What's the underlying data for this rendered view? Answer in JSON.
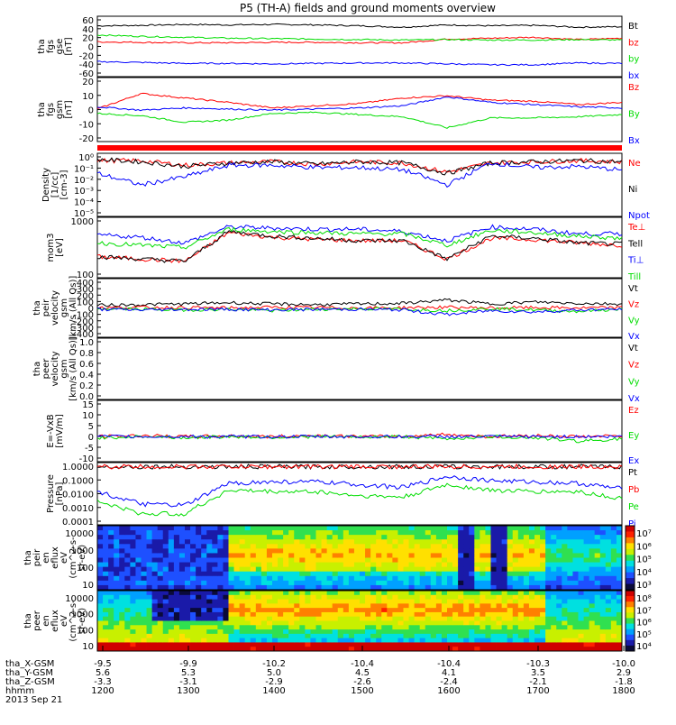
{
  "title": "P5 (TH-A) fields and ground moments overview",
  "colors": {
    "black": "#000000",
    "red": "#ff0000",
    "green": "#00dd00",
    "blue": "#0000ff",
    "frame": "#000000"
  },
  "chart_data": [
    {
      "type": "line",
      "panel": "fgs_gse",
      "ylabel": [
        "tha",
        "fgs",
        "gse",
        "[nT]"
      ],
      "yticks": [
        60,
        40,
        20,
        0,
        -20,
        -40,
        -60
      ],
      "ylim": [
        -60,
        60
      ],
      "series": [
        {
          "name": "Bt",
          "color": "black",
          "values": [
            45,
            46,
            48,
            47,
            48,
            47,
            45,
            42,
            47,
            45,
            46,
            42,
            43
          ]
        },
        {
          "name": "bz",
          "color": "red",
          "values": [
            10,
            9,
            8,
            8,
            9,
            9,
            8,
            8,
            16,
            18,
            20,
            15,
            18
          ]
        },
        {
          "name": "by",
          "color": "green",
          "values": [
            25,
            22,
            20,
            18,
            17,
            16,
            15,
            14,
            15,
            14,
            14,
            15,
            14
          ]
        },
        {
          "name": "bx",
          "color": "blue",
          "values": [
            -33,
            -35,
            -37,
            -37,
            -38,
            -37,
            -36,
            -36,
            -38,
            -40,
            -40,
            -36,
            -37
          ]
        }
      ]
    },
    {
      "type": "line",
      "panel": "fgs_gsm",
      "ylabel": [
        "tha",
        "fgs",
        "gsm",
        "[nT]"
      ],
      "yticks": [
        20,
        10,
        0,
        -10,
        -20
      ],
      "ylim": [
        -25,
        28
      ],
      "series": [
        {
          "name": "Bz",
          "color": "red",
          "values": [
            2,
            16,
            12,
            8,
            3,
            5,
            7,
            12,
            14,
            10,
            9,
            6,
            8
          ]
        },
        {
          "name": "By",
          "color": "green",
          "values": [
            -2,
            -4,
            -10,
            -8,
            -2,
            -1,
            -3,
            -5,
            -15,
            -6,
            -6,
            -5,
            -3
          ]
        },
        {
          "name": "Bx",
          "color": "blue",
          "values": [
            4,
            1,
            3,
            2,
            1,
            2,
            3,
            5,
            13,
            8,
            6,
            4,
            3
          ]
        }
      ]
    },
    {
      "type": "line",
      "panel": "density",
      "log": true,
      "ylabel": [
        "Density",
        "[1/cc]",
        "[cm-3]"
      ],
      "yticks": [
        "10^0",
        "10^-1",
        "10^-2",
        "10^-3",
        "10^-4",
        "10^-5"
      ],
      "ylim": [
        -5,
        0
      ],
      "series": [
        {
          "name": "Ne",
          "color": "red",
          "values": [
            -0.4,
            -0.4,
            -0.8,
            -0.6,
            -0.5,
            -0.7,
            -0.5,
            -0.6,
            -1.4,
            -0.6,
            -0.5,
            -0.4,
            -0.5
          ]
        },
        {
          "name": "Ni",
          "color": "black",
          "values": [
            -0.3,
            -0.5,
            -0.9,
            -0.6,
            -0.5,
            -0.7,
            -0.5,
            -0.6,
            -1.5,
            -0.6,
            -0.5,
            -0.4,
            -0.5
          ]
        },
        {
          "name": "Npot",
          "color": "blue",
          "values": [
            -1.5,
            -2.5,
            -1.8,
            -0.8,
            -0.8,
            -1.0,
            -1.0,
            -1.2,
            -2.5,
            -0.6,
            -1.0,
            -0.9,
            -1.2
          ]
        }
      ]
    },
    {
      "type": "line",
      "panel": "temperature",
      "log": true,
      "ylabel": [
        "mom3",
        "[eV]"
      ],
      "yticks": [
        "1000",
        "100"
      ],
      "ylim": [
        1.5,
        3.9
      ],
      "series": [
        {
          "name": "Te⊥",
          "color": "red",
          "values": [
            2.3,
            2.2,
            2.1,
            3.35,
            3.15,
            3.05,
            3.0,
            3.0,
            2.2,
            3.1,
            3.05,
            2.9,
            2.8
          ]
        },
        {
          "name": "Tell",
          "color": "black",
          "values": [
            2.3,
            2.2,
            2.1,
            3.4,
            3.2,
            3.1,
            3.0,
            3.0,
            2.2,
            3.2,
            3.1,
            2.9,
            2.85
          ]
        },
        {
          "name": "Ti⊥",
          "color": "blue",
          "values": [
            3.25,
            3.15,
            2.9,
            3.6,
            3.55,
            3.5,
            3.5,
            3.4,
            3.0,
            3.6,
            3.5,
            3.3,
            3.3
          ]
        },
        {
          "name": "Till",
          "color": "green",
          "values": [
            2.9,
            2.8,
            2.7,
            3.5,
            3.4,
            3.35,
            3.3,
            3.3,
            2.8,
            3.45,
            3.35,
            3.2,
            3.1
          ]
        }
      ]
    },
    {
      "type": "line",
      "panel": "peir_velocity",
      "ylabel": [
        "tha",
        "peir",
        "velocity",
        "gsm",
        "[km/s (All Qs)]"
      ],
      "yticks": [
        400,
        300,
        200,
        100,
        0,
        -100,
        -200,
        -300,
        -400
      ],
      "ylim": [
        -400,
        400
      ],
      "series": [
        {
          "name": "Vt",
          "color": "black",
          "values": [
            40,
            50,
            60,
            80,
            60,
            50,
            60,
            70,
            120,
            60,
            90,
            70,
            60
          ]
        },
        {
          "name": "Vz",
          "color": "red",
          "values": [
            0,
            10,
            5,
            0,
            10,
            5,
            0,
            5,
            10,
            0,
            5,
            0,
            5
          ]
        },
        {
          "name": "Vy",
          "color": "green",
          "values": [
            -10,
            -20,
            -30,
            -20,
            -40,
            -20,
            -10,
            -20,
            -40,
            -10,
            -30,
            -50,
            -20
          ]
        },
        {
          "name": "Vx",
          "color": "blue",
          "values": [
            -20,
            -30,
            -20,
            -20,
            -30,
            -20,
            -20,
            -30,
            -100,
            -40,
            -60,
            -30,
            -20
          ]
        }
      ]
    },
    {
      "type": "line",
      "panel": "peer_velocity",
      "ylabel": [
        "tha",
        "peer",
        "velocity",
        "gsm",
        "[km/s (All Qs)]"
      ],
      "yticks": [
        "1.0",
        "0.8",
        "0.6",
        "0.4",
        "0.2",
        "0.0"
      ],
      "ylim": [
        0,
        1
      ],
      "series": [
        {
          "name": "Vt",
          "color": "black",
          "values": []
        },
        {
          "name": "Vz",
          "color": "red",
          "values": []
        },
        {
          "name": "Vy",
          "color": "green",
          "values": []
        },
        {
          "name": "Vx",
          "color": "blue",
          "values": []
        }
      ]
    },
    {
      "type": "line",
      "panel": "efield",
      "ylabel": [
        "E=-VxB",
        "[mV/m]"
      ],
      "yticks": [
        15,
        10,
        5,
        0,
        -5,
        -10
      ],
      "ylim": [
        -10,
        15
      ],
      "series": [
        {
          "name": "Ez",
          "color": "red",
          "values": [
            0,
            0.5,
            0,
            0.3,
            0,
            0.5,
            0,
            0.2,
            1,
            0,
            0.5,
            0,
            0.3
          ]
        },
        {
          "name": "Ey",
          "color": "green",
          "values": [
            -0.5,
            0,
            -0.5,
            0,
            -0.3,
            0,
            -0.2,
            0,
            -1,
            0,
            -0.5,
            -2,
            -1
          ]
        },
        {
          "name": "Ex",
          "color": "blue",
          "values": [
            0,
            0,
            0,
            0,
            0,
            0,
            0,
            0,
            0,
            0,
            0,
            0,
            0
          ]
        }
      ]
    },
    {
      "type": "line",
      "panel": "pressure",
      "log": true,
      "ylabel": [
        "Pressure",
        "[nPa]"
      ],
      "yticks": [
        "1.0000",
        "0.1000",
        "0.0100",
        "0.0010",
        "0.0001"
      ],
      "ylim": [
        -4,
        0.1
      ],
      "series": [
        {
          "name": "Pt",
          "color": "black",
          "values": [
            0,
            0,
            0,
            0,
            0,
            0,
            0,
            0,
            0,
            0,
            0,
            0,
            0
          ]
        },
        {
          "name": "Pb",
          "color": "red",
          "values": [
            0,
            0,
            0,
            0,
            0,
            0,
            0,
            0,
            0,
            0,
            0,
            0,
            0
          ]
        },
        {
          "name": "Pe",
          "color": "green",
          "values": [
            -2.5,
            -3.4,
            -3.4,
            -1.7,
            -1.8,
            -1.8,
            -2.1,
            -2.2,
            -1.3,
            -1.7,
            -1.8,
            -1.8,
            -2.3
          ]
        },
        {
          "name": "Pi",
          "color": "blue",
          "values": [
            -1.8,
            -2.7,
            -2.8,
            -1.2,
            -1.1,
            -1.1,
            -1.3,
            -1.5,
            -0.7,
            -1.0,
            -1.1,
            -1.2,
            -1.6
          ]
        }
      ]
    },
    {
      "type": "heatmap",
      "panel": "peir_eflux",
      "ylabel": [
        "tha",
        "peir",
        "en",
        "eflux",
        "eV",
        "(cm^2-s-",
        "sr-eV)"
      ],
      "yticks": [
        "10000",
        "1000",
        "100",
        "10"
      ],
      "colorbar": [
        "10^7",
        "10^6",
        "10^5",
        "10^4",
        "10^3"
      ]
    },
    {
      "type": "heatmap",
      "panel": "peer_eflux",
      "ylabel": [
        "tha",
        "peer",
        "en",
        "eflux",
        "eV",
        "(cm^2-s-",
        "sr-eV)"
      ],
      "yticks": [
        "10000",
        "1000",
        "100",
        "10"
      ],
      "colorbar": [
        "10^8",
        "10^7",
        "10^6",
        "10^5",
        "10^4"
      ]
    }
  ],
  "axis": {
    "rows": [
      {
        "label": "tha_X-GSM",
        "values": [
          "-9.5",
          "-9.9",
          "-10.2",
          "-10.4",
          "-10.4",
          "-10.3",
          "-10.0"
        ]
      },
      {
        "label": "tha_Y-GSM",
        "values": [
          "5.6",
          "5.3",
          "5.0",
          "4.5",
          "4.1",
          "3.5",
          "2.9"
        ]
      },
      {
        "label": "tha_Z-GSM",
        "values": [
          "-3.3",
          "-3.1",
          "-2.9",
          "-2.6",
          "-2.4",
          "-2.1",
          "-1.8"
        ]
      },
      {
        "label": "hhmm",
        "values": [
          "1200",
          "1300",
          "1400",
          "1500",
          "1600",
          "1700",
          "1800"
        ]
      }
    ],
    "date": "2013 Sep 21"
  }
}
